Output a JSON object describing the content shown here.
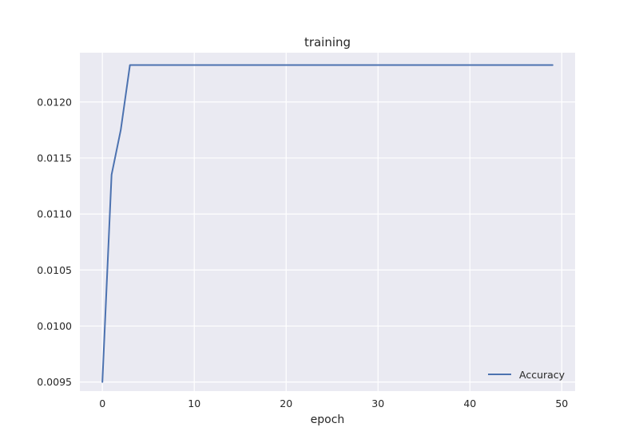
{
  "chart_data": {
    "type": "line",
    "title": "training",
    "xlabel": "epoch",
    "ylabel": "",
    "xlim": [
      -2.45,
      51.45
    ],
    "ylim": [
      0.009419,
      0.01244
    ],
    "xticks": [
      0,
      10,
      20,
      30,
      40,
      50
    ],
    "xtick_labels": [
      "0",
      "10",
      "20",
      "30",
      "40",
      "50"
    ],
    "yticks": [
      0.0095,
      0.01,
      0.0105,
      0.011,
      0.0115,
      0.012
    ],
    "ytick_labels": [
      "0.0095",
      "0.0100",
      "0.0105",
      "0.0110",
      "0.0115",
      "0.0120"
    ],
    "grid": true,
    "legend_position": "lower-right",
    "series": [
      {
        "name": "Accuracy",
        "color": "#4c72b0",
        "x": [
          0,
          1,
          2,
          3,
          4,
          5,
          6,
          7,
          8,
          9,
          10,
          11,
          12,
          13,
          14,
          15,
          16,
          17,
          18,
          19,
          20,
          21,
          22,
          23,
          24,
          25,
          26,
          27,
          28,
          29,
          30,
          31,
          32,
          33,
          34,
          35,
          36,
          37,
          38,
          39,
          40,
          41,
          42,
          43,
          44,
          45,
          46,
          47,
          48,
          49
        ],
        "y": [
          0.0095,
          0.01135,
          0.01175,
          0.01233,
          0.01233,
          0.01233,
          0.01233,
          0.01233,
          0.01233,
          0.01233,
          0.01233,
          0.01233,
          0.01233,
          0.01233,
          0.01233,
          0.01233,
          0.01233,
          0.01233,
          0.01233,
          0.01233,
          0.01233,
          0.01233,
          0.01233,
          0.01233,
          0.01233,
          0.01233,
          0.01233,
          0.01233,
          0.01233,
          0.01233,
          0.01233,
          0.01233,
          0.01233,
          0.01233,
          0.01233,
          0.01233,
          0.01233,
          0.01233,
          0.01233,
          0.01233,
          0.01233,
          0.01233,
          0.01233,
          0.01233,
          0.01233,
          0.01233,
          0.01233,
          0.01233,
          0.01233,
          0.01233
        ]
      }
    ]
  },
  "colors": {
    "axes_background": "#eaeaf2",
    "grid": "#ffffff",
    "text": "#262626"
  }
}
